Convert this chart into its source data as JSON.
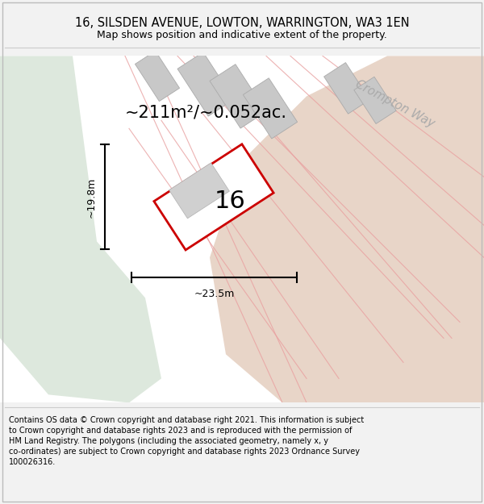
{
  "title": "16, SILSDEN AVENUE, LOWTON, WARRINGTON, WA3 1EN",
  "subtitle": "Map shows position and indicative extent of the property.",
  "footer": "Contains OS data © Crown copyright and database right 2021. This information is subject\nto Crown copyright and database rights 2023 and is reproduced with the permission of\nHM Land Registry. The polygons (including the associated geometry, namely x, y\nco-ordinates) are subject to Crown copyright and database rights 2023 Ordnance Survey\n100026316.",
  "area_label": "~211m²/~0.052ac.",
  "number_label": "16",
  "dim_height": "~19.8m",
  "dim_width": "~23.5m",
  "road_label": "Crompton Way",
  "bg_color": "#f2f2f2",
  "map_bg": "#ffffff",
  "plot_color_red": "#cc0000",
  "plot_fill": "#ffffff",
  "light_green": "#dde8dd",
  "light_tan": "#e8d5c8",
  "gray_block": "#c8c8c8",
  "gray_block_edge": "#aaaaaa",
  "pink_line": "#e8a0a0",
  "border_color": "#cccccc"
}
